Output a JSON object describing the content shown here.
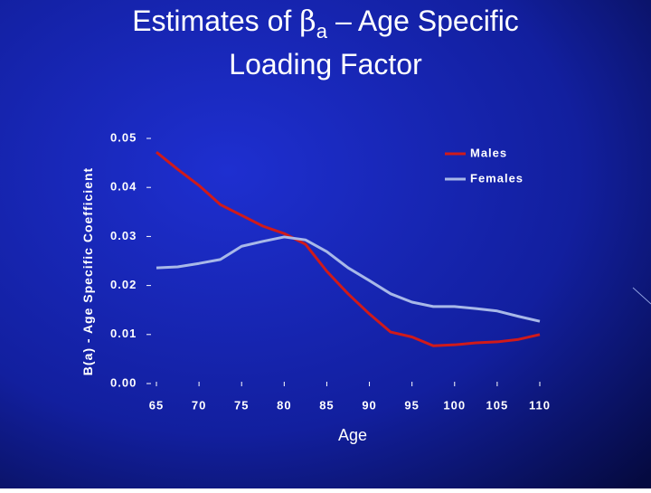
{
  "chart_data": {
    "type": "line",
    "title": {
      "prefix": "Estimates of",
      "symbol": "β",
      "subscript": "a",
      "suffix": "– Age Specific",
      "line2": "Loading Factor"
    },
    "x_label": "Age",
    "y_label": "B(a) - Age Specific Coefficient",
    "x": [
      65,
      67.5,
      70,
      72.5,
      75,
      77.5,
      80,
      82.5,
      85,
      87.5,
      90,
      92.5,
      95,
      97.5,
      100,
      102.5,
      105,
      107.5,
      110
    ],
    "series": [
      {
        "name": "Males",
        "color": "#d01a1a",
        "values": [
          0.0472,
          0.0437,
          0.0404,
          0.0365,
          0.0343,
          0.0321,
          0.0306,
          0.0284,
          0.0229,
          0.0183,
          0.0142,
          0.0105,
          0.0095,
          0.0077,
          0.0079,
          0.0083,
          0.0085,
          0.009,
          0.01
        ]
      },
      {
        "name": "Females",
        "color": "#a8b8e8",
        "values": [
          0.0236,
          0.0238,
          0.0245,
          0.0253,
          0.028,
          0.029,
          0.0299,
          0.0293,
          0.0269,
          0.0236,
          0.021,
          0.0183,
          0.0166,
          0.0157,
          0.0157,
          0.0153,
          0.0148,
          0.0137,
          0.0127
        ]
      }
    ],
    "xlim": [
      65,
      110
    ],
    "xticks": [
      65,
      70,
      75,
      80,
      85,
      90,
      95,
      100,
      105,
      110
    ],
    "ylim": [
      0,
      0.05
    ],
    "yticks": [
      {
        "value": 0,
        "label": "0.00"
      },
      0.01,
      0.02,
      0.03,
      0.04,
      0.05
    ],
    "grid": false,
    "legend": "top-right"
  }
}
